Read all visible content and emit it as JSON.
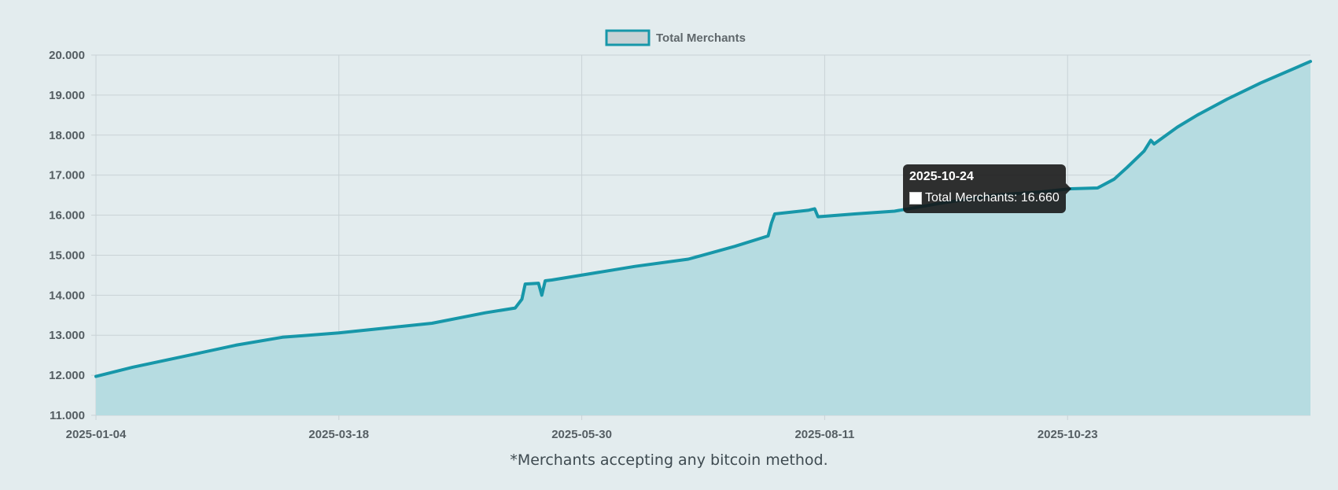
{
  "legend": {
    "label": "Total Merchants"
  },
  "footnote": "*Merchants accepting any bitcoin method.",
  "tooltip": {
    "title": "2025-10-24",
    "label": "Total Merchants: 16.660"
  },
  "colors": {
    "line": "#1797a9",
    "fill": "#b6dce1",
    "grid": "#c9d2d6",
    "background": "#e3ecee"
  },
  "chart_data": {
    "type": "area",
    "title": "",
    "xlabel": "",
    "ylabel": "",
    "ylim": [
      11000,
      20000
    ],
    "yticks": [
      "20.000",
      "19.000",
      "18.000",
      "17.000",
      "16.000",
      "15.000",
      "14.000",
      "13.000",
      "12.000",
      "11.000"
    ],
    "xticks": [
      "2025-01-04",
      "2025-03-18",
      "2025-05-30",
      "2025-08-11",
      "2025-10-23"
    ],
    "xlim": [
      "2025-01-04",
      "2026-01-04"
    ],
    "grid": true,
    "legend_position": "top-center",
    "series": [
      {
        "name": "Total Merchants",
        "x": [
          "2025-01-04",
          "2025-01-15",
          "2025-02-01",
          "2025-02-15",
          "2025-03-01",
          "2025-03-18",
          "2025-04-01",
          "2025-04-15",
          "2025-05-01",
          "2025-05-10",
          "2025-05-12",
          "2025-05-13",
          "2025-05-17",
          "2025-05-18",
          "2025-05-19",
          "2025-05-21",
          "2025-06-01",
          "2025-06-15",
          "2025-07-01",
          "2025-07-15",
          "2025-07-25",
          "2025-07-26",
          "2025-07-27",
          "2025-08-06",
          "2025-08-08",
          "2025-08-09",
          "2025-08-20",
          "2025-09-01",
          "2025-09-15",
          "2025-10-01",
          "2025-10-15",
          "2025-10-24",
          "2025-11-01",
          "2025-11-06",
          "2025-11-10",
          "2025-11-15",
          "2025-11-17",
          "2025-11-18",
          "2025-11-25",
          "2025-12-01",
          "2025-12-10",
          "2025-12-20",
          "2026-01-04"
        ],
        "y": [
          11970,
          12200,
          12500,
          12750,
          12950,
          13060,
          13180,
          13300,
          13560,
          13680,
          13900,
          14280,
          14300,
          14000,
          14360,
          14380,
          14530,
          14720,
          14900,
          15220,
          15480,
          15800,
          16030,
          16120,
          16160,
          15960,
          16030,
          16100,
          16300,
          16500,
          16580,
          16660,
          16680,
          16900,
          17200,
          17600,
          17870,
          17780,
          18200,
          18500,
          18900,
          19300,
          19840
        ]
      }
    ]
  }
}
